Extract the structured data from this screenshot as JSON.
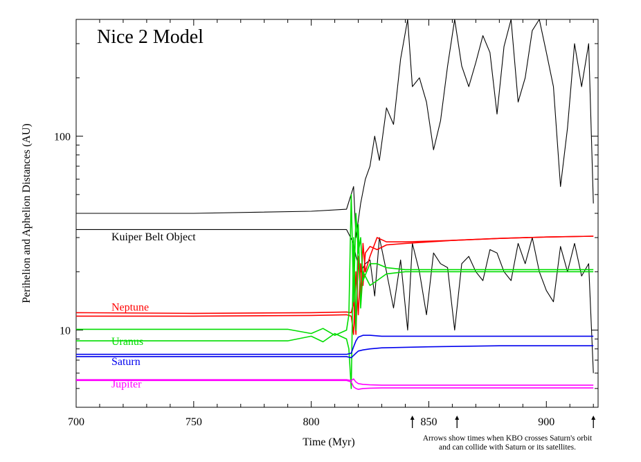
{
  "chart_data": {
    "type": "line",
    "title": "Nice 2 Model",
    "xlabel": "Time (Myr)",
    "ylabel": "Perihelion and Aphelion Distances (AU)",
    "x_scale": "linear",
    "y_scale": "log",
    "xlim": [
      700,
      922
    ],
    "ylim": [
      4,
      400
    ],
    "x_ticks": [
      700,
      750,
      800,
      850,
      900
    ],
    "y_ticks": [
      10,
      100
    ],
    "y_minor_ticks": [
      5,
      6,
      7,
      8,
      9,
      20,
      30,
      40,
      50,
      60,
      70,
      80,
      90,
      200,
      300
    ],
    "grid": false,
    "note_lines": [
      "Arrows show times when KBO crosses Saturn's orbit",
      "and can collide with Saturn or its satellites."
    ],
    "arrow_x": [
      843,
      862,
      920
    ],
    "series": [
      {
        "name": "Kuiper Belt Object",
        "label_x": 715,
        "label_y": 29,
        "color": "#000000",
        "role": "aphelion",
        "x": [
          700,
          750,
          800,
          815,
          818,
          819,
          821,
          823,
          825,
          827,
          829,
          832,
          835,
          838,
          841,
          843,
          846,
          849,
          852,
          855,
          858,
          861,
          864,
          867,
          870,
          873,
          876,
          879,
          882,
          885,
          888,
          891,
          894,
          897,
          900,
          903,
          906,
          909,
          912,
          915,
          918,
          920
        ],
        "y": [
          40,
          40,
          41,
          42,
          55,
          30,
          45,
          60,
          70,
          100,
          75,
          140,
          115,
          250,
          400,
          180,
          200,
          150,
          85,
          120,
          230,
          400,
          230,
          180,
          240,
          330,
          270,
          130,
          290,
          400,
          150,
          200,
          350,
          400,
          270,
          180,
          55,
          110,
          300,
          180,
          300,
          45
        ]
      },
      {
        "name": "",
        "color": "#000000",
        "role": "perihelion",
        "x": [
          700,
          750,
          800,
          815,
          818,
          819,
          821,
          823,
          825,
          827,
          829,
          832,
          835,
          838,
          841,
          843,
          846,
          849,
          852,
          855,
          858,
          861,
          864,
          867,
          870,
          873,
          876,
          879,
          882,
          885,
          888,
          891,
          894,
          897,
          900,
          903,
          906,
          909,
          912,
          915,
          918,
          920
        ],
        "y": [
          33,
          33,
          33,
          33,
          28,
          24,
          20,
          22,
          23,
          15,
          30,
          20,
          13,
          23,
          10,
          28,
          20,
          12,
          25,
          22,
          21,
          10,
          22,
          24,
          20,
          18,
          26,
          25,
          20,
          18,
          28,
          22,
          30,
          20,
          16,
          14,
          27,
          20,
          28,
          19,
          22,
          6
        ]
      },
      {
        "name": "Neptune",
        "label_x": 715,
        "label_y": 12.6,
        "color": "#ff0000",
        "role": "aphelion",
        "x": [
          700,
          750,
          800,
          815,
          817,
          818,
          819,
          820,
          821,
          822,
          823,
          825,
          828,
          832,
          840,
          860,
          880,
          900,
          920
        ],
        "y": [
          12.3,
          12.2,
          12.3,
          12.4,
          12.3,
          14,
          9.5,
          24,
          15,
          28,
          20,
          24,
          30,
          28.5,
          28.5,
          29,
          29.7,
          30.2,
          30.5
        ]
      },
      {
        "name": "",
        "color": "#ff0000",
        "role": "perihelion",
        "x": [
          700,
          750,
          800,
          815,
          817,
          818,
          819,
          820,
          821,
          822,
          823,
          825,
          828,
          832,
          840,
          860,
          880,
          900,
          920
        ],
        "y": [
          11.8,
          11.8,
          11.9,
          12.0,
          11.8,
          9.5,
          20,
          12,
          22,
          17,
          25,
          27,
          26,
          27.5,
          28,
          29,
          29.7,
          30.2,
          30.5
        ]
      },
      {
        "name": "Uranus",
        "label_x": 715,
        "label_y": 8.4,
        "color": "#00dd00",
        "role": "aphelion",
        "x": [
          700,
          750,
          790,
          800,
          805,
          810,
          815,
          816,
          817,
          818,
          819,
          820,
          821,
          822,
          825,
          828,
          832,
          840,
          860,
          880,
          900,
          920
        ],
        "y": [
          10.1,
          10.1,
          10.1,
          9.6,
          10.2,
          9.4,
          10.0,
          12,
          50,
          14,
          40,
          25,
          30,
          18,
          22,
          22,
          21,
          20.5,
          20.5,
          20.5,
          20.5,
          20.5
        ]
      },
      {
        "name": "",
        "color": "#00dd00",
        "role": "perihelion",
        "x": [
          700,
          750,
          790,
          800,
          805,
          810,
          815,
          816,
          817,
          818,
          819,
          820,
          821,
          822,
          825,
          828,
          832,
          840,
          860,
          880,
          900,
          920
        ],
        "y": [
          8.8,
          8.8,
          8.8,
          9.3,
          8.7,
          9.6,
          9.0,
          8.0,
          5.0,
          30,
          10,
          35,
          13,
          20,
          17,
          18,
          19.5,
          20,
          20,
          20,
          20,
          20
        ]
      },
      {
        "name": "Saturn",
        "label_x": 715,
        "label_y": 6.6,
        "color": "#0000ee",
        "role": "aphelion",
        "x": [
          700,
          750,
          800,
          815,
          817,
          818,
          819,
          820,
          822,
          825,
          830,
          850,
          880,
          920
        ],
        "y": [
          7.5,
          7.5,
          7.5,
          7.5,
          7.6,
          8.2,
          8.8,
          9.2,
          9.4,
          9.4,
          9.3,
          9.3,
          9.3,
          9.3
        ]
      },
      {
        "name": "",
        "color": "#0000ee",
        "role": "perihelion",
        "x": [
          700,
          750,
          800,
          815,
          817,
          818,
          819,
          820,
          822,
          825,
          830,
          850,
          880,
          920
        ],
        "y": [
          7.3,
          7.3,
          7.3,
          7.3,
          7.2,
          7.4,
          7.6,
          7.8,
          7.9,
          8.0,
          8.1,
          8.2,
          8.3,
          8.3
        ]
      },
      {
        "name": "Jupiter",
        "label_x": 715,
        "label_y": 5.05,
        "color": "#ff00ff",
        "role": "aphelion",
        "x": [
          700,
          750,
          800,
          815,
          817,
          818,
          819,
          820,
          822,
          825,
          830,
          880,
          920
        ],
        "y": [
          5.55,
          5.55,
          5.55,
          5.55,
          5.5,
          5.6,
          5.4,
          5.3,
          5.25,
          5.22,
          5.2,
          5.2,
          5.2
        ]
      },
      {
        "name": "",
        "color": "#ff00ff",
        "role": "perihelion",
        "x": [
          700,
          750,
          800,
          815,
          817,
          818,
          819,
          820,
          822,
          825,
          830,
          880,
          920
        ],
        "y": [
          5.5,
          5.5,
          5.5,
          5.5,
          5.4,
          5.1,
          5.0,
          4.95,
          5.0,
          5.02,
          5.03,
          5.03,
          5.03
        ]
      }
    ]
  }
}
